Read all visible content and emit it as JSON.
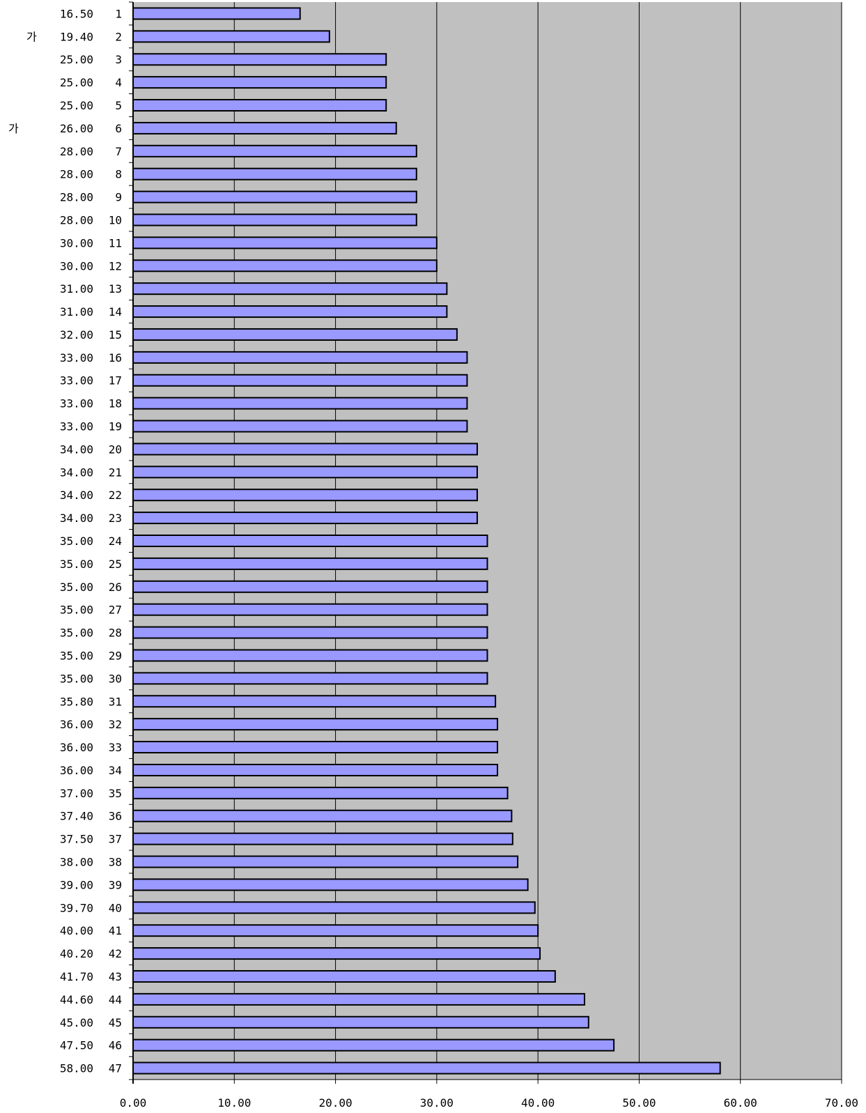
{
  "chart_data": {
    "type": "bar",
    "orientation": "horizontal",
    "categories": [
      "1",
      "2",
      "3",
      "4",
      "5",
      "6",
      "7",
      "8",
      "9",
      "10",
      "11",
      "12",
      "13",
      "14",
      "15",
      "16",
      "17",
      "18",
      "19",
      "20",
      "21",
      "22",
      "23",
      "24",
      "25",
      "26",
      "27",
      "28",
      "29",
      "30",
      "31",
      "32",
      "33",
      "34",
      "35",
      "36",
      "37",
      "38",
      "39",
      "40",
      "41",
      "42",
      "43",
      "44",
      "45",
      "46",
      "47"
    ],
    "values": [
      16.5,
      19.4,
      25,
      25,
      25,
      26,
      28,
      28,
      28,
      28,
      30,
      30,
      31,
      31,
      32,
      33,
      33,
      33,
      33,
      34,
      34,
      34,
      34,
      35,
      35,
      35,
      35,
      35,
      35,
      35,
      35.8,
      36,
      36,
      36,
      37,
      37.4,
      37.5,
      38,
      39,
      39.7,
      40,
      40.2,
      41.7,
      44.6,
      45,
      47.5,
      58
    ],
    "value_labels": [
      "16.50",
      "19.40",
      "25.00",
      "25.00",
      "25.00",
      "26.00",
      "28.00",
      "28.00",
      "28.00",
      "28.00",
      "30.00",
      "30.00",
      "31.00",
      "31.00",
      "32.00",
      "33.00",
      "33.00",
      "33.00",
      "33.00",
      "34.00",
      "34.00",
      "34.00",
      "34.00",
      "35.00",
      "35.00",
      "35.00",
      "35.00",
      "35.00",
      "35.00",
      "35.00",
      "35.80",
      "36.00",
      "36.00",
      "36.00",
      "37.00",
      "37.40",
      "37.50",
      "38.00",
      "39.00",
      "39.70",
      "40.00",
      "40.20",
      "41.70",
      "44.60",
      "45.00",
      "47.50",
      "58.00"
    ],
    "xlim": [
      0,
      70
    ],
    "x_ticks": [
      "0.00",
      "10.00",
      "20.00",
      "30.00",
      "40.00",
      "50.00",
      "60.00",
      "70.00"
    ],
    "side_marks": [
      {
        "row": "2",
        "text": "가"
      },
      {
        "row": "6",
        "text": "가"
      }
    ],
    "grid": true,
    "legend": "none",
    "colors": {
      "bar_fill": "#9999ff",
      "bar_stroke": "#000000",
      "plot_bg": "#c0c0c0",
      "gridline": "#000000"
    }
  }
}
